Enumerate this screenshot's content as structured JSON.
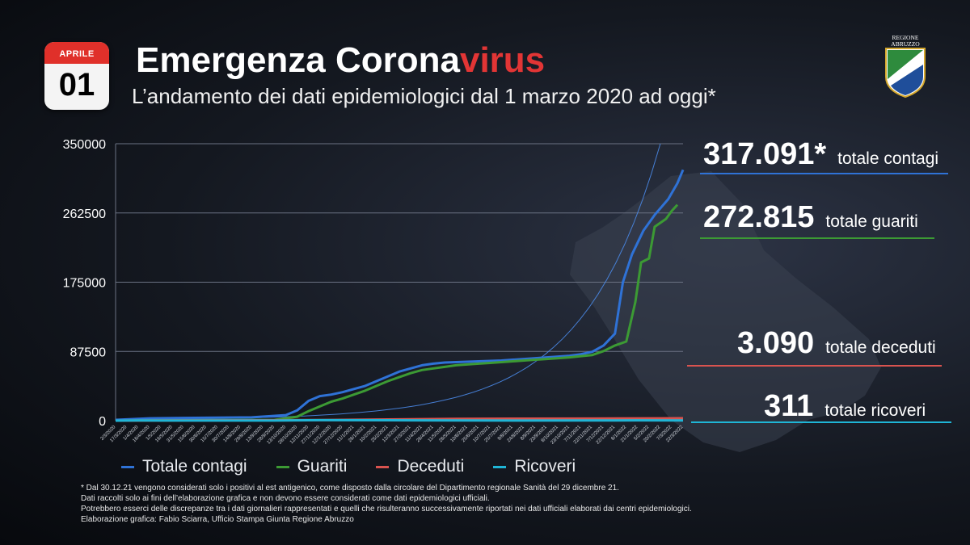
{
  "date": {
    "month": "APRILE",
    "day": "01"
  },
  "title": {
    "main": "Emergenza Corona",
    "accent": "virus"
  },
  "subtitle": "L’andamento dei dati epidemiologici dal 1 marzo 2020 ad oggi*",
  "logo": {
    "text_line1": "REGIONE",
    "text_line2": "ABRUZZO"
  },
  "colors": {
    "contagi": "#2f72d6",
    "guariti": "#3c9a34",
    "deceduti": "#d9534f",
    "ricoveri": "#1fb5d6",
    "exp_line": "#4a88e6",
    "accent": "#e23535"
  },
  "totals": [
    {
      "value": "317.091*",
      "label": "totale contagi",
      "color": "#2f72d6"
    },
    {
      "value": "272.815",
      "label": "totale guariti",
      "color": "#3c9a34"
    },
    {
      "value": "3.090",
      "label": "totale deceduti",
      "color": "#d9534f"
    },
    {
      "value": "311",
      "label": "totale ricoveri",
      "color": "#1fb5d6"
    }
  ],
  "legend": [
    {
      "label": "Totale contagi",
      "color": "#2f72d6"
    },
    {
      "label": "Guariti",
      "color": "#3c9a34"
    },
    {
      "label": "Deceduti",
      "color": "#d9534f"
    },
    {
      "label": "Ricoveri",
      "color": "#1fb5d6"
    }
  ],
  "notes": [
    "* Dal 30.12.21 vengono considerati solo i positivi al est antigenico, come disposto dalla circolare del Dipartimento regionale Sanità del 29 dicembre 21.",
    "Dati raccolti solo ai fini dell’elaborazione grafica e non devono essere considerati come dati epidemiologici ufficiali.",
    "Potrebbero esserci delle discrepanze tra i dati giornalieri rappresentati e quelli che risulteranno successivamente riportati nei dati ufficiali elaborati dai centri epidemiologici.",
    "Elaborazione grafica: Fabio Sciarra, Ufficio Stampa Giunta Regione Abruzzo"
  ],
  "chart_data": {
    "type": "line",
    "ylim": [
      0,
      350000
    ],
    "yticks": [
      "350000",
      "262500",
      "175000",
      "87500",
      "0"
    ],
    "ytick_values": [
      350000,
      262500,
      175000,
      87500,
      0
    ],
    "x_ticks": [
      "2/3/2020",
      "17/3/2020",
      "1/4/2020",
      "16/4/2020",
      "1/5/2020",
      "16/5/2020",
      "31/5/2020",
      "15/6/2020",
      "30/6/2020",
      "15/7/2020",
      "30/7/2020",
      "14/8/2020",
      "29/8/2020",
      "13/9/2020",
      "28/9/2020",
      "13/10/2020",
      "28/10/2020",
      "12/11/2020",
      "27/11/2020",
      "12/12/2020",
      "27/12/2020",
      "11/1/2021",
      "26/1/2021",
      "10/2/2021",
      "25/2/2021",
      "12/3/2021",
      "27/3/2021",
      "11/4/2021",
      "26/4/2021",
      "11/5/2021",
      "26/5/2021",
      "10/6/2021",
      "25/6/2021",
      "10/7/2021",
      "25/7/2021",
      "9/8/2021",
      "24/8/2021",
      "8/9/2021",
      "23/9/2021",
      "8/10/2021",
      "23/10/2021",
      "7/11/2021",
      "22/11/2021",
      "7/12/2021",
      "22/12/2021",
      "6/1/2022",
      "21/1/2022",
      "5/2/2022",
      "20/2/2022",
      "7/3/2022",
      "22/3/2022"
    ],
    "series": [
      {
        "name": "Totale contagi",
        "color": "#2f72d6",
        "points": [
          [
            0,
            1000
          ],
          [
            3,
            3000
          ],
          [
            6,
            3500
          ],
          [
            9,
            3800
          ],
          [
            12,
            4200
          ],
          [
            15,
            7000
          ],
          [
            16,
            13000
          ],
          [
            17,
            25000
          ],
          [
            18,
            31000
          ],
          [
            19,
            33000
          ],
          [
            20,
            36000
          ],
          [
            21,
            40000
          ],
          [
            22,
            44000
          ],
          [
            23,
            50000
          ],
          [
            24,
            56000
          ],
          [
            25,
            62000
          ],
          [
            26,
            66000
          ],
          [
            27,
            70000
          ],
          [
            28,
            72000
          ],
          [
            29,
            73500
          ],
          [
            30,
            74000
          ],
          [
            31,
            74500
          ],
          [
            32,
            75000
          ],
          [
            33,
            75500
          ],
          [
            34,
            76000
          ],
          [
            35,
            77000
          ],
          [
            36,
            78000
          ],
          [
            37,
            79000
          ],
          [
            38,
            80000
          ],
          [
            39,
            81000
          ],
          [
            40,
            82000
          ],
          [
            41,
            84000
          ],
          [
            42,
            87000
          ],
          [
            43,
            95000
          ],
          [
            44,
            110000
          ],
          [
            44.7,
            175000
          ],
          [
            45.5,
            210000
          ],
          [
            46.5,
            240000
          ],
          [
            47.5,
            260000
          ],
          [
            48.7,
            280000
          ],
          [
            49.5,
            300000
          ],
          [
            50,
            317091
          ]
        ]
      },
      {
        "name": "Guariti",
        "color": "#3c9a34",
        "points": [
          [
            0,
            0
          ],
          [
            14,
            1000
          ],
          [
            16,
            5000
          ],
          [
            17,
            12000
          ],
          [
            18,
            18000
          ],
          [
            19,
            24000
          ],
          [
            20,
            28000
          ],
          [
            21,
            33000
          ],
          [
            22,
            38000
          ],
          [
            23,
            44000
          ],
          [
            24,
            50000
          ],
          [
            25,
            55000
          ],
          [
            26,
            60000
          ],
          [
            27,
            64000
          ],
          [
            28,
            66000
          ],
          [
            29,
            68000
          ],
          [
            30,
            70000
          ],
          [
            31,
            71000
          ],
          [
            32,
            72000
          ],
          [
            33,
            73000
          ],
          [
            34,
            74000
          ],
          [
            35,
            75000
          ],
          [
            36,
            76000
          ],
          [
            37,
            77000
          ],
          [
            38,
            78000
          ],
          [
            39,
            79000
          ],
          [
            40,
            80000
          ],
          [
            41,
            81500
          ],
          [
            42,
            83000
          ],
          [
            43,
            88000
          ],
          [
            44,
            95000
          ],
          [
            45,
            100000
          ],
          [
            45.8,
            150000
          ],
          [
            46.3,
            200000
          ],
          [
            47,
            205000
          ],
          [
            47.5,
            245000
          ],
          [
            48.5,
            255000
          ],
          [
            49,
            265000
          ],
          [
            49.5,
            272815
          ]
        ]
      },
      {
        "name": "Deceduti",
        "color": "#d9534f",
        "points": [
          [
            0,
            0
          ],
          [
            3,
            200
          ],
          [
            6,
            450
          ],
          [
            12,
            500
          ],
          [
            18,
            800
          ],
          [
            24,
            1500
          ],
          [
            30,
            2300
          ],
          [
            36,
            2550
          ],
          [
            42,
            2650
          ],
          [
            48,
            2950
          ],
          [
            50,
            3090
          ]
        ]
      },
      {
        "name": "Ricoveri",
        "color": "#1fb5d6",
        "points": [
          [
            0,
            0
          ],
          [
            2,
            300
          ],
          [
            4,
            100
          ],
          [
            14,
            100
          ],
          [
            18,
            600
          ],
          [
            24,
            500
          ],
          [
            30,
            200
          ],
          [
            36,
            100
          ],
          [
            42,
            200
          ],
          [
            46,
            450
          ],
          [
            50,
            311
          ]
        ]
      }
    ]
  }
}
